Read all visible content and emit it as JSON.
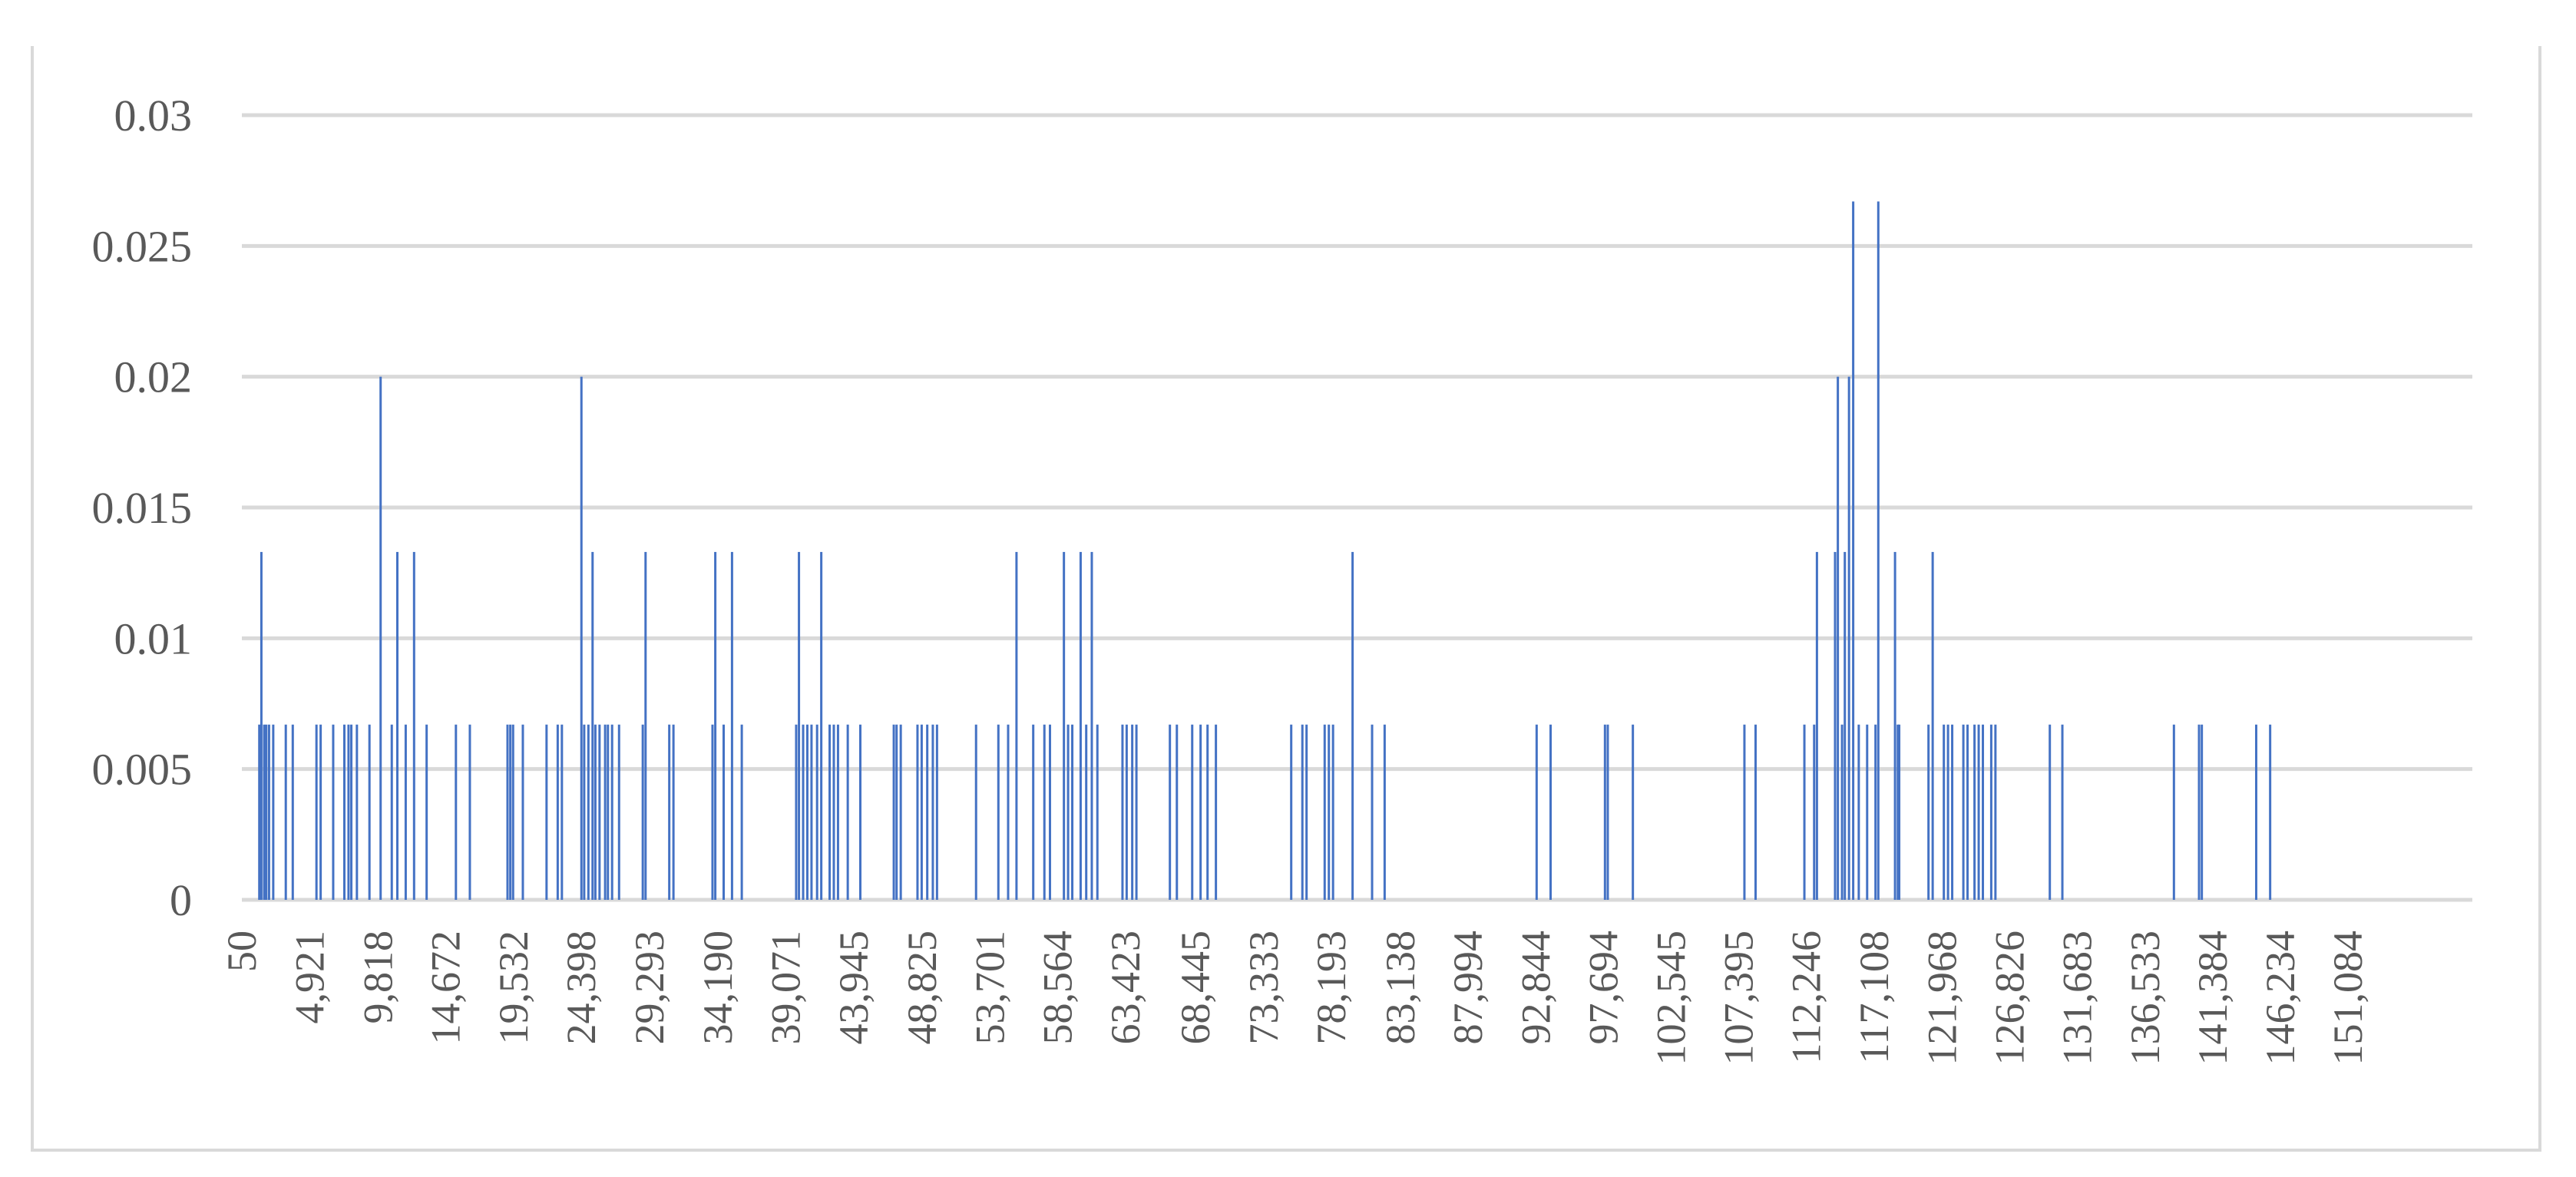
{
  "chart_data": {
    "type": "bar",
    "title": "",
    "xlabel": "",
    "ylabel": "",
    "xlim": [
      50,
      160000
    ],
    "ylim": [
      0,
      0.03
    ],
    "grid": true,
    "legend": "none",
    "bar_color": "#4472c4",
    "grid_color": "#d9d9d9",
    "y_ticks": [
      {
        "value": 0,
        "label": "0"
      },
      {
        "value": 0.005,
        "label": "0.005"
      },
      {
        "value": 0.01,
        "label": "0.01"
      },
      {
        "value": 0.015,
        "label": "0.015"
      },
      {
        "value": 0.02,
        "label": "0.02"
      },
      {
        "value": 0.025,
        "label": "0.025"
      },
      {
        "value": 0.03,
        "label": "0.03"
      }
    ],
    "x_ticks": [
      {
        "value": 50,
        "label": "50"
      },
      {
        "value": 4921,
        "label": "4,921"
      },
      {
        "value": 9818,
        "label": "9,818"
      },
      {
        "value": 14672,
        "label": "14,672"
      },
      {
        "value": 19532,
        "label": "19,532"
      },
      {
        "value": 24398,
        "label": "24,398"
      },
      {
        "value": 29293,
        "label": "29,293"
      },
      {
        "value": 34190,
        "label": "34,190"
      },
      {
        "value": 39071,
        "label": "39,071"
      },
      {
        "value": 43945,
        "label": "43,945"
      },
      {
        "value": 48825,
        "label": "48,825"
      },
      {
        "value": 53701,
        "label": "53,701"
      },
      {
        "value": 58564,
        "label": "58,564"
      },
      {
        "value": 63423,
        "label": "63,423"
      },
      {
        "value": 68445,
        "label": "68,445"
      },
      {
        "value": 73333,
        "label": "73,333"
      },
      {
        "value": 78193,
        "label": "78,193"
      },
      {
        "value": 83138,
        "label": "83,138"
      },
      {
        "value": 87994,
        "label": "87,994"
      },
      {
        "value": 92844,
        "label": "92,844"
      },
      {
        "value": 97694,
        "label": "97,694"
      },
      {
        "value": 102545,
        "label": "102,545"
      },
      {
        "value": 107395,
        "label": "107,395"
      },
      {
        "value": 112246,
        "label": "112,246"
      },
      {
        "value": 117108,
        "label": "117,108"
      },
      {
        "value": 121968,
        "label": "121,968"
      },
      {
        "value": 126826,
        "label": "126,826"
      },
      {
        "value": 131683,
        "label": "131,683"
      },
      {
        "value": 136533,
        "label": "136,533"
      },
      {
        "value": 141384,
        "label": "141,384"
      },
      {
        "value": 146234,
        "label": "146,234"
      },
      {
        "value": 151084,
        "label": "151,084"
      }
    ],
    "series": [
      {
        "x": [
          1300,
          1450,
          1650,
          1800,
          2000,
          2300,
          3200,
          3700,
          5400,
          5700,
          6600,
          7400,
          7700,
          7900,
          8300,
          9200,
          10000,
          10800,
          11200,
          11800,
          12400,
          13300,
          15400,
          16400,
          19100,
          19300,
          19500,
          20200,
          21900,
          22700,
          23000,
          24400,
          24600,
          24900,
          25200,
          25400,
          25700,
          26100,
          26300,
          26600,
          27100,
          28800,
          29000,
          30700,
          31000,
          33800,
          34000,
          34600,
          35200,
          35900,
          39800,
          40000,
          40300,
          40600,
          40900,
          41300,
          41600,
          42200,
          42500,
          42800,
          43500,
          44400,
          46800,
          47000,
          47300,
          48500,
          48800,
          49200,
          49600,
          49900,
          52700,
          54300,
          55000,
          55600,
          56800,
          57600,
          58000,
          59000,
          59300,
          59600,
          60200,
          60600,
          61000,
          61400,
          63200,
          63500,
          63900,
          64200,
          66600,
          67100,
          68200,
          68800,
          69300,
          69900,
          75300,
          76100,
          76400,
          77700,
          78000,
          78300,
          79700,
          81100,
          82000,
          92900,
          93900,
          97800,
          98000,
          99800,
          107800,
          108600,
          112100,
          112800,
          113000,
          114300,
          114500,
          114800,
          115000,
          115300,
          115600,
          116000,
          116600,
          117200,
          117400,
          118600,
          118800,
          118900,
          121000,
          121300,
          122100,
          122400,
          122700,
          123500,
          123800,
          124300,
          124600,
          124900,
          125500,
          125800,
          129700,
          130600,
          138600,
          140400,
          140600,
          144500,
          145500
        ],
        "y": [
          0.0067,
          0.0133,
          0.0067,
          0.0067,
          0.0067,
          0.0067,
          0.0067,
          0.0067,
          0.0067,
          0.0067,
          0.0067,
          0.0067,
          0.0067,
          0.0067,
          0.0067,
          0.0067,
          0.02,
          0.0067,
          0.0133,
          0.0067,
          0.0133,
          0.0067,
          0.0067,
          0.0067,
          0.0067,
          0.0067,
          0.0067,
          0.0067,
          0.0067,
          0.0067,
          0.0067,
          0.02,
          0.0067,
          0.0067,
          0.0133,
          0.0067,
          0.0067,
          0.0067,
          0.0067,
          0.0067,
          0.0067,
          0.0067,
          0.0133,
          0.0067,
          0.0067,
          0.0067,
          0.0133,
          0.0067,
          0.0133,
          0.0067,
          0.0067,
          0.0133,
          0.0067,
          0.0067,
          0.0067,
          0.0067,
          0.0133,
          0.0067,
          0.0067,
          0.0067,
          0.0067,
          0.0067,
          0.0067,
          0.0067,
          0.0067,
          0.0067,
          0.0067,
          0.0067,
          0.0067,
          0.0067,
          0.0067,
          0.0067,
          0.0067,
          0.0133,
          0.0067,
          0.0067,
          0.0067,
          0.0133,
          0.0067,
          0.0067,
          0.0133,
          0.0067,
          0.0133,
          0.0067,
          0.0067,
          0.0067,
          0.0067,
          0.0067,
          0.0067,
          0.0067,
          0.0067,
          0.0067,
          0.0067,
          0.0067,
          0.0067,
          0.0067,
          0.0067,
          0.0067,
          0.0067,
          0.0067,
          0.0133,
          0.0067,
          0.0067,
          0.0067,
          0.0067,
          0.0067,
          0.0067,
          0.0067,
          0.0067,
          0.0067,
          0.0067,
          0.0067,
          0.0133,
          0.0133,
          0.02,
          0.0067,
          0.0133,
          0.02,
          0.0267,
          0.0067,
          0.0067,
          0.0067,
          0.0267,
          0.0133,
          0.0067,
          0.0067,
          0.0067,
          0.0133,
          0.0067,
          0.0067,
          0.0067,
          0.0067,
          0.0067,
          0.0067,
          0.0067,
          0.0067,
          0.0067,
          0.0067,
          0.0067,
          0.0067,
          0.0067,
          0.0067,
          0.0067,
          0.0067,
          0.0067
        ]
      }
    ]
  }
}
